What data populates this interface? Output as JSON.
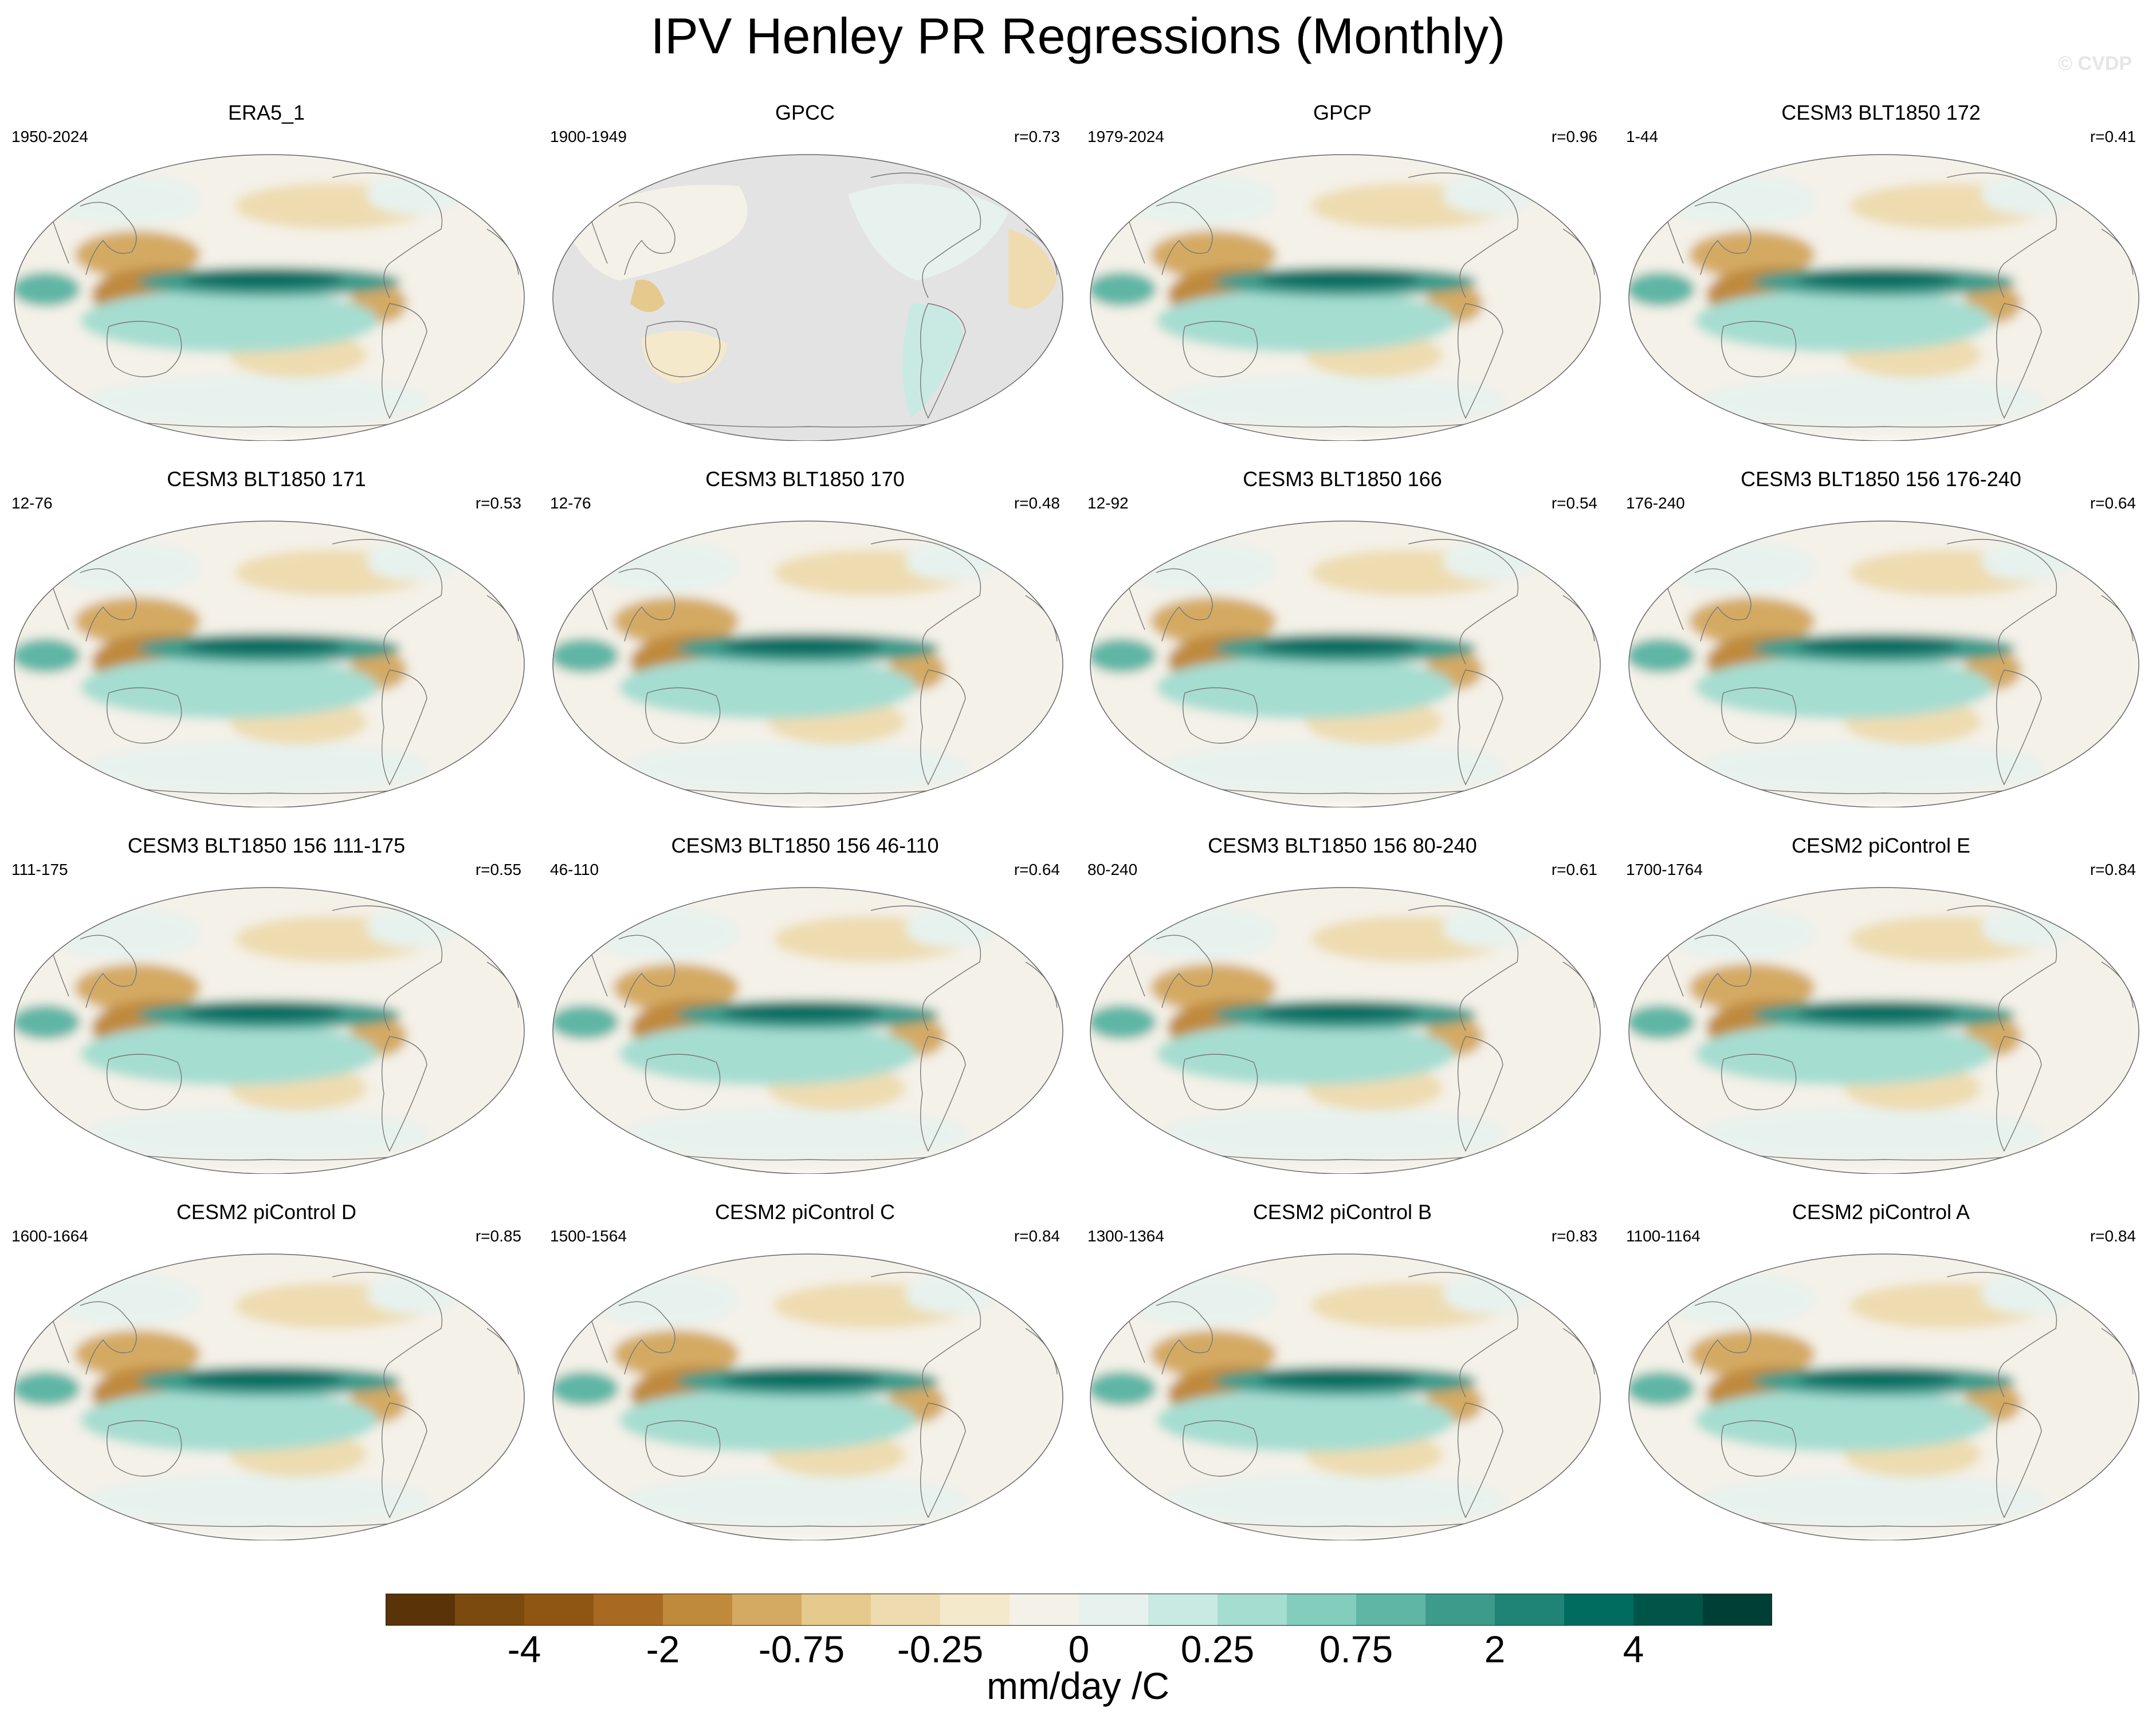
{
  "title": "IPV Henley PR Regressions (Monthly)",
  "watermark": "© CVDP",
  "panels": [
    {
      "title": "ERA5_1",
      "years": "1950-2024",
      "r": "",
      "mask": false
    },
    {
      "title": "GPCC",
      "years": "1900-1949",
      "r": "r=0.73",
      "mask": true
    },
    {
      "title": "GPCP",
      "years": "1979-2024",
      "r": "r=0.96",
      "mask": false
    },
    {
      "title": "CESM3 BLT1850 172",
      "years": "1-44",
      "r": "r=0.41",
      "mask": false
    },
    {
      "title": "CESM3 BLT1850 171",
      "years": "12-76",
      "r": "r=0.53",
      "mask": false
    },
    {
      "title": "CESM3 BLT1850 170",
      "years": "12-76",
      "r": "r=0.48",
      "mask": false
    },
    {
      "title": "CESM3 BLT1850 166",
      "years": "12-92",
      "r": "r=0.54",
      "mask": false
    },
    {
      "title": "CESM3 BLT1850 156 176-240",
      "years": "176-240",
      "r": "r=0.64",
      "mask": false
    },
    {
      "title": "CESM3 BLT1850 156 111-175",
      "years": "111-175",
      "r": "r=0.55",
      "mask": false
    },
    {
      "title": "CESM3 BLT1850 156 46-110",
      "years": "46-110",
      "r": "r=0.64",
      "mask": false
    },
    {
      "title": "CESM3 BLT1850 156 80-240",
      "years": "80-240",
      "r": "r=0.61",
      "mask": false
    },
    {
      "title": "CESM2 piControl E",
      "years": "1700-1764",
      "r": "r=0.84",
      "mask": false
    },
    {
      "title": "CESM2 piControl D",
      "years": "1600-1664",
      "r": "r=0.85",
      "mask": false
    },
    {
      "title": "CESM2 piControl C",
      "years": "1500-1564",
      "r": "r=0.84",
      "mask": false
    },
    {
      "title": "CESM2 piControl B",
      "years": "1300-1364",
      "r": "r=0.83",
      "mask": false
    },
    {
      "title": "CESM2 piControl A",
      "years": "1100-1164",
      "r": "r=0.84",
      "mask": false
    }
  ],
  "colorbar": {
    "units": "mm/day /C",
    "colors": [
      "#5a3308",
      "#7a4a0f",
      "#8f5512",
      "#a86a22",
      "#c08a3c",
      "#d4aa63",
      "#e6c98d",
      "#eedcb0",
      "#f5e9cb",
      "#f4f1e8",
      "#e7f2ee",
      "#c8eae2",
      "#a6ddd1",
      "#83cdbd",
      "#5fb6a5",
      "#3d9b8c",
      "#1f8375",
      "#006b5f",
      "#005549",
      "#003f35"
    ],
    "labels": [
      {
        "text": "-4",
        "boundary": 2
      },
      {
        "text": "-2",
        "boundary": 4
      },
      {
        "text": "-0.75",
        "boundary": 6
      },
      {
        "text": "-0.25",
        "boundary": 8
      },
      {
        "text": "0",
        "boundary": 10
      },
      {
        "text": "0.25",
        "boundary": 12
      },
      {
        "text": "0.75",
        "boundary": 14
      },
      {
        "text": "2",
        "boundary": 16
      },
      {
        "text": "4",
        "boundary": 18
      }
    ]
  }
}
